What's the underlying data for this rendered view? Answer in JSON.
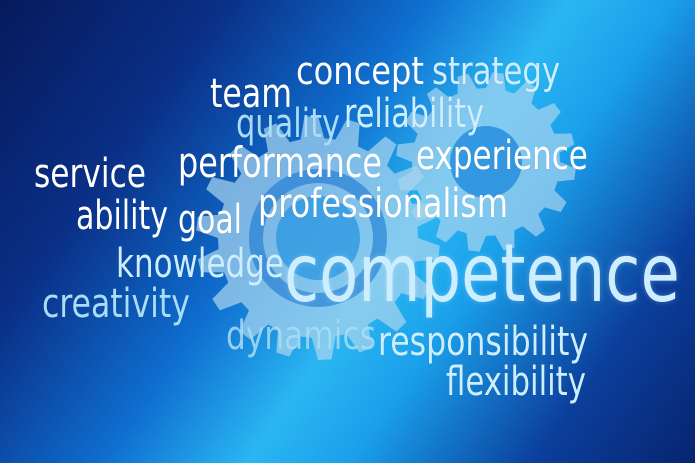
{
  "words": {
    "concept": "concept",
    "strategy": "strategy",
    "team": "team",
    "quality": "quality",
    "reliability": "reliability",
    "service": "service",
    "performance": "performance",
    "experience": "experience",
    "ability": "ability",
    "goal": "goal",
    "professionalism": "professionalism",
    "knowledge": "knowledge",
    "competence": "competence",
    "creativity": "creativity",
    "dynamics": "dynamics",
    "responsibility": "responsibility",
    "flexibility": "flexibility"
  },
  "colors": {
    "white": "#ffffff",
    "light_blue": "#cdeeff",
    "pale_blue": "#a9ddf7",
    "gear": "#a8d4ef"
  }
}
